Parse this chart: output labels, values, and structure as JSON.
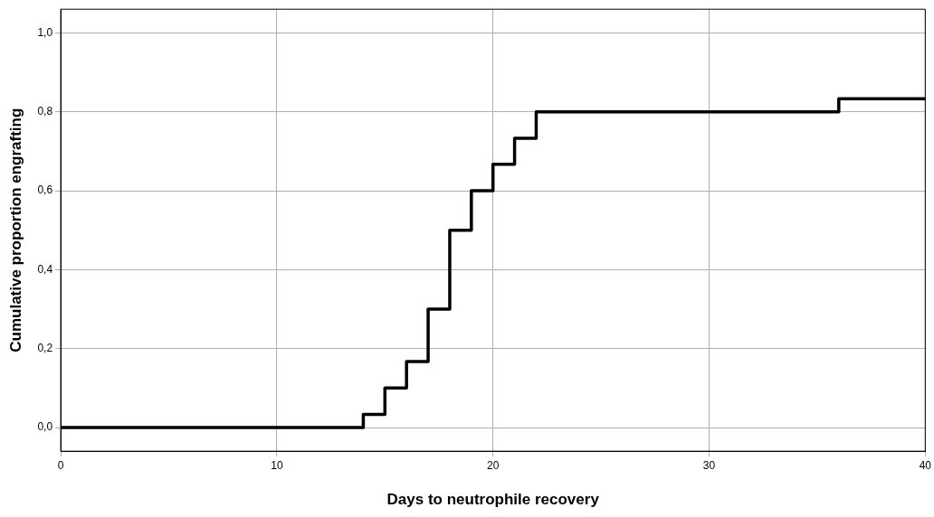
{
  "chart_data": {
    "type": "step",
    "xlabel": "Days to neutrophile recovery",
    "ylabel": "Cumulative proportion engrafting",
    "x": [
      0,
      14,
      15,
      16,
      17,
      18,
      19,
      20,
      21,
      22,
      36,
      40
    ],
    "series": [
      {
        "color": "#000000",
        "values": [
          0,
          0.033,
          0.1,
          0.167,
          0.3,
          0.5,
          0.6,
          0.667,
          0.733,
          0.8,
          0.833,
          0.833
        ]
      }
    ],
    "xlim": [
      0,
      40
    ],
    "xticks": [
      0,
      10,
      20,
      30,
      40
    ],
    "ylim": [
      -0.06,
      1.06
    ],
    "yticks": [
      {
        "value": 0,
        "label": "0,0"
      },
      {
        "value": 0.2,
        "label": "0,2"
      },
      {
        "value": 0.4,
        "label": "0,4"
      },
      {
        "value": 0.6,
        "label": "0,6"
      },
      {
        "value": 0.8,
        "label": "0,8"
      },
      {
        "value": 1,
        "label": "1,0"
      }
    ],
    "grid": true,
    "legend": false,
    "marker": "none",
    "line_style": "solid"
  }
}
